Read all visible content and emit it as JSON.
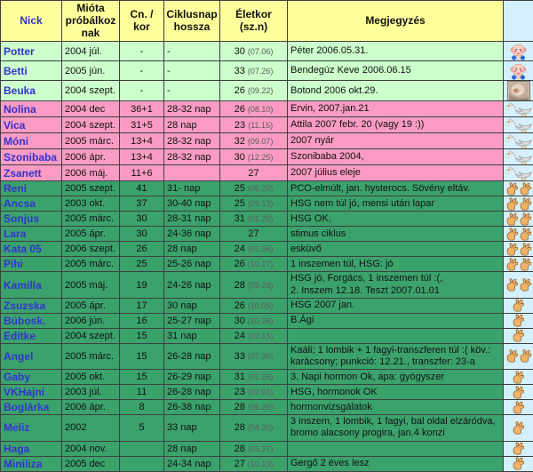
{
  "colors": {
    "header_bg": "#FFFF9C",
    "born_bg": "#CCFFCC",
    "pregnant_bg": "#FA9BC4",
    "trying_bg": "#3BA26C",
    "icon_column_bg": "#D4F0FC",
    "nick_text": "#3333CC"
  },
  "columns": [
    {
      "key": "nick",
      "label": "Nick"
    },
    {
      "key": "since",
      "label": "Mióta próbálkoz nak"
    },
    {
      "key": "cn",
      "label": "Cn. / kor"
    },
    {
      "key": "cycle",
      "label": "Ciklusnap hossza"
    },
    {
      "key": "age",
      "label": "Életkor (sz.n)"
    },
    {
      "key": "note",
      "label": "Megjegyzés"
    },
    {
      "key": "iconcol",
      "label": ""
    }
  ],
  "rows": [
    {
      "nick": "Potter",
      "since": "2004 júl.",
      "cn": "-",
      "cycle": "-",
      "age": "30",
      "age_date": "(07.06)",
      "note": "Péter 2006.05.31.",
      "group": "born",
      "icon": "baby-icon",
      "icon_count": 1
    },
    {
      "nick": "Betti",
      "since": "2005 jún.",
      "cn": "-",
      "cycle": "-",
      "age": "33",
      "age_date": "(07.26)",
      "note": "Bendegúz Keve 2006.06.15",
      "group": "born",
      "icon": "baby-icon",
      "icon_count": 1
    },
    {
      "nick": "Beuka",
      "since": "2004 szept.",
      "cn": "-",
      "cycle": "-",
      "age": "26",
      "age_date": "(09.22)",
      "note": "Botond 2006 okt.29.",
      "group": "born",
      "icon": "baby-photo",
      "icon_count": 1
    },
    {
      "nick": "Nolina",
      "since": "2004 dec",
      "cn": "36+1",
      "cycle": "28-32 nap",
      "age": "26",
      "age_date": "(08.10)",
      "note": "Ervin, 2007.jan.21",
      "group": "pregnant",
      "icon": "stork-icon",
      "icon_count": 1
    },
    {
      "nick": "Vica",
      "since": "2004 szept.",
      "cn": "31+5",
      "cycle": "28 nap",
      "age": "23",
      "age_date": "(11.15)",
      "note": "Attila 2007 febr. 20 (vagy 19 :))",
      "group": "pregnant",
      "icon": "stork-icon",
      "icon_count": 1
    },
    {
      "nick": "Móni",
      "since": "2005 márc.",
      "cn": "13+4",
      "cycle": "28-32 nap",
      "age": "32",
      "age_date": "(09.07)",
      "note": "2007 nyár",
      "group": "pregnant",
      "icon": "stork-icon",
      "icon_count": 1
    },
    {
      "nick": "Szonibaba",
      "since": "2006 ápr.",
      "cn": "13+4",
      "cycle": "28-32 nap",
      "age": "30",
      "age_date": "(12.25)",
      "note": "Szonibaba 2004,",
      "group": "pregnant",
      "icon": "stork-icon",
      "icon_count": 1
    },
    {
      "nick": "Zsanett",
      "since": "2006 máj.",
      "cn": "11+6",
      "cycle": "",
      "age": "27",
      "age_date": "",
      "note": "2007 július eleje",
      "group": "pregnant",
      "icon": "stork-icon",
      "icon_count": 1
    },
    {
      "nick": "Reni",
      "since": "2005 szept.",
      "cn": "41",
      "cycle": "31- nap",
      "age": "25",
      "age_date": "(05.29)",
      "note": "PCO-elmúlt, jan. hysterocs. Sövény eltáv.",
      "group": "trying",
      "icon": "crossed-fingers-icon",
      "icon_count": 2
    },
    {
      "nick": "Ancsa",
      "since": "2003 okt.",
      "cn": "37",
      "cycle": "30-40 nap",
      "age": "25",
      "age_date": "(09.13)",
      "note": "HSG nem túl jó, mensi után lapar",
      "group": "trying",
      "icon": "crossed-fingers-icon",
      "icon_count": 2
    },
    {
      "nick": "Sonjus",
      "since": "2005 márc.",
      "cn": "30",
      "cycle": "28-31 nap",
      "age": "31",
      "age_date": "(01.20)",
      "note": "HSG OK,",
      "group": "trying",
      "icon": "crossed-fingers-icon",
      "icon_count": 2
    },
    {
      "nick": "Lara",
      "since": "2005 ápr.",
      "cn": "30",
      "cycle": "24-36 nap",
      "age": "27",
      "age_date": "",
      "note": "stimus ciklus",
      "group": "trying",
      "icon": "crossed-fingers-icon",
      "icon_count": 2
    },
    {
      "nick": "Kata 05",
      "since": "2006 szept.",
      "cn": "26",
      "cycle": "28 nap",
      "age": "24",
      "age_date": "(01.05)",
      "note": "esküvő",
      "group": "trying",
      "icon": "crossed-fingers-icon",
      "icon_count": 2
    },
    {
      "nick": "Pihi",
      "since": "2005 márc.",
      "cn": "25",
      "cycle": "25-26 nap",
      "age": "26",
      "age_date": "(10.17)",
      "note": "1 inszemen túl, HSG: jó",
      "group": "trying",
      "icon": "crossed-fingers-icon",
      "icon_count": 2
    },
    {
      "nick": "Kamilla",
      "since": "2005 máj.",
      "cn": "19",
      "cycle": "24-26 nap",
      "age": "28",
      "age_date": "(05.29)",
      "note": "HSG jó, Forgács, 1 inszemen túl :(,\n2. Inszem 12.18. Teszt 2007.01.01",
      "group": "trying",
      "icon": "crossed-fingers-icon",
      "icon_count": 2
    },
    {
      "nick": "Zsuzska",
      "since": "2005 ápr.",
      "cn": "17",
      "cycle": "30 nap",
      "age": "26",
      "age_date": "(10.05)",
      "note": "HSG 2007 jan.",
      "group": "trying",
      "icon": "crossed-fingers-icon",
      "icon_count": 1
    },
    {
      "nick": "Búbosk.",
      "since": "2006 jún.",
      "cn": "16",
      "cycle": "25-27 nap",
      "age": "30",
      "age_date": "(10.26)",
      "note": "B.Ági",
      "group": "trying",
      "icon": "crossed-fingers-icon",
      "icon_count": 1
    },
    {
      "nick": "Editke",
      "since": "2004 szept.",
      "cn": "15",
      "cycle": "31 nap",
      "age": "24",
      "age_date": "(02.15)",
      "note": "",
      "group": "trying",
      "icon": "crossed-fingers-icon",
      "icon_count": 1
    },
    {
      "nick": "Angel",
      "since": "2005 márc.",
      "cn": "15",
      "cycle": "26-28 nap",
      "age": "33",
      "age_date": "(07.30)",
      "note": "Kaáli; 1 lombik + 1 fagyi-transzferen túl :( köv.:\nkarácsony; punkció: 12.21., transzfer: 23-a",
      "group": "trying",
      "icon": "crossed-fingers-icon",
      "icon_count": 2
    },
    {
      "nick": "Gaby",
      "since": "2005 okt.",
      "cn": "15",
      "cycle": "26-29 nap",
      "age": "31",
      "age_date": "(01.25)",
      "note": "3. Napi hormon Ok, apa: gyógyszer",
      "group": "trying",
      "icon": "crossed-fingers-icon",
      "icon_count": 1
    },
    {
      "nick": "VKHajni",
      "since": "2003 júl.",
      "cn": "11",
      "cycle": "26-28 nap",
      "age": "23",
      "age_date": "(02.01)",
      "note": "HSG, hormonok OK",
      "group": "trying",
      "icon": "crossed-fingers-icon",
      "icon_count": 1
    },
    {
      "nick": "Boglárka",
      "since": "2006 ápr.",
      "cn": "8",
      "cycle": "26-38 nap",
      "age": "28",
      "age_date": "(05.26)",
      "note": "hormonvizsgálatok",
      "group": "trying",
      "icon": "crossed-fingers-icon",
      "icon_count": 1
    },
    {
      "nick": "Meliz",
      "since": "2002",
      "cn": "5",
      "cycle": "33 nap",
      "age": "28",
      "age_date": "(04.30)",
      "note": "3 inszem, 1 lombik, 1 fagyi, bal oldal elzáródva,\nbromo alacsony progira, jan.4 konzi",
      "group": "trying",
      "icon": "crossed-fingers-icon",
      "icon_count": 1
    },
    {
      "nick": "Haga",
      "since": "2004 nov.",
      "cn": "",
      "cycle": "28 nap",
      "age": "28",
      "age_date": "(03.27)",
      "note": "",
      "group": "trying",
      "icon": "crossed-fingers-icon",
      "icon_count": 1
    },
    {
      "nick": "Miniliza",
      "since": "2005 dec",
      "cn": "",
      "cycle": "24-34 nap",
      "age": "27",
      "age_date": "(10.13)",
      "note": "Gergő 2 éves lesz",
      "group": "trying",
      "icon": "crossed-fingers-icon",
      "icon_count": 1
    }
  ]
}
